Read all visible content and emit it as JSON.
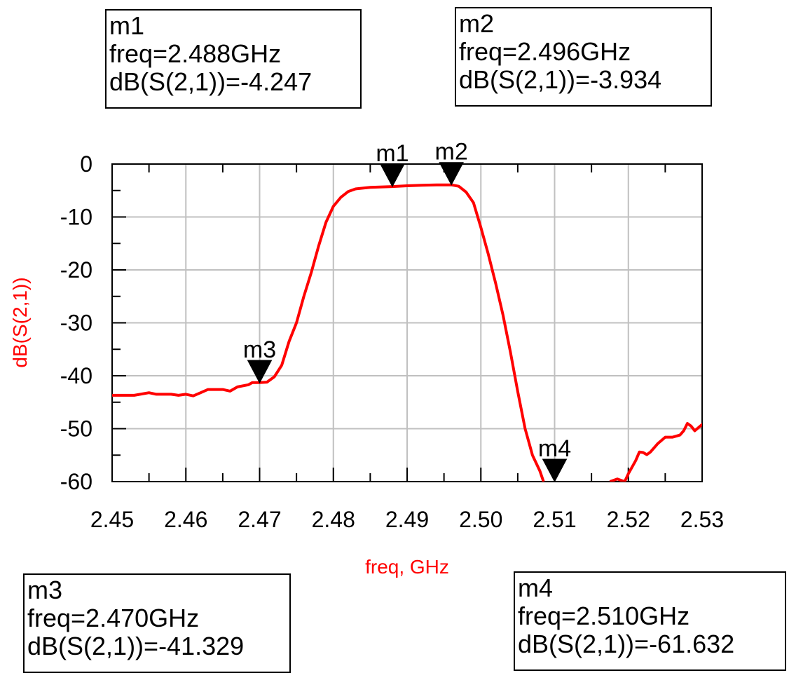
{
  "colors": {
    "trace": "#ff0000",
    "grid": "#c0c0c0",
    "axis": "#000000",
    "axis_title": "#ff0000"
  },
  "chart_data": {
    "type": "line",
    "xlabel": "freq, GHz",
    "ylabel": "dB(S(2,1))",
    "xlim": [
      2.45,
      2.53
    ],
    "ylim": [
      -60,
      0
    ],
    "grid": true,
    "x_ticks": [
      "2.45",
      "2.46",
      "2.47",
      "2.48",
      "2.49",
      "2.50",
      "2.51",
      "2.52",
      "2.53"
    ],
    "y_ticks": [
      "0",
      "-10",
      "-20",
      "-30",
      "-40",
      "-50",
      "-60"
    ],
    "series": [
      {
        "segments": [
          [
            [
              2.45,
              -43.7
            ],
            [
              2.453,
              -43.7
            ],
            [
              2.455,
              -43.2
            ],
            [
              2.456,
              -43.5
            ],
            [
              2.458,
              -43.5
            ],
            [
              2.459,
              -43.7
            ],
            [
              2.46,
              -43.5
            ],
            [
              2.461,
              -43.8
            ],
            [
              2.462,
              -43.2
            ],
            [
              2.463,
              -42.6
            ],
            [
              2.465,
              -42.6
            ],
            [
              2.466,
              -42.9
            ],
            [
              2.467,
              -42.1
            ],
            [
              2.4685,
              -41.7
            ],
            [
              2.469,
              -41.3
            ],
            [
              2.47,
              -41.3
            ],
            [
              2.471,
              -41.2
            ],
            [
              2.472,
              -40.2
            ],
            [
              2.473,
              -38.0
            ],
            [
              2.474,
              -33.5
            ],
            [
              2.475,
              -30.0
            ],
            [
              2.476,
              -25.0
            ],
            [
              2.477,
              -20.5
            ],
            [
              2.478,
              -15.5
            ],
            [
              2.479,
              -11.0
            ],
            [
              2.48,
              -8.0
            ],
            [
              2.481,
              -6.3
            ],
            [
              2.482,
              -5.2
            ],
            [
              2.483,
              -4.7
            ],
            [
              2.485,
              -4.4
            ],
            [
              2.487,
              -4.3
            ],
            [
              2.488,
              -4.247
            ],
            [
              2.49,
              -4.1
            ],
            [
              2.492,
              -4.0
            ],
            [
              2.494,
              -3.95
            ],
            [
              2.496,
              -3.934
            ],
            [
              2.497,
              -4.2
            ],
            [
              2.498,
              -5.3
            ],
            [
              2.499,
              -7.3
            ],
            [
              2.5,
              -12.0
            ],
            [
              2.501,
              -17.0
            ],
            [
              2.502,
              -22.5
            ],
            [
              2.503,
              -28.5
            ],
            [
              2.504,
              -35.5
            ],
            [
              2.505,
              -43.0
            ],
            [
              2.506,
              -50.0
            ],
            [
              2.507,
              -55.0
            ],
            [
              2.508,
              -58.0
            ],
            [
              2.5085,
              -60
            ]
          ],
          [
            [
              2.5175,
              -60
            ],
            [
              2.5185,
              -59.5
            ],
            [
              2.5195,
              -60
            ],
            [
              2.52,
              -58.5
            ],
            [
              2.521,
              -56.0
            ],
            [
              2.5215,
              -54.4
            ],
            [
              2.522,
              -54.5
            ],
            [
              2.5225,
              -54.9
            ],
            [
              2.523,
              -54.4
            ],
            [
              2.524,
              -52.8
            ],
            [
              2.525,
              -51.6
            ],
            [
              2.526,
              -51.6
            ],
            [
              2.527,
              -51.2
            ],
            [
              2.5275,
              -50.4
            ],
            [
              2.528,
              -49.0
            ],
            [
              2.5285,
              -49.5
            ],
            [
              2.529,
              -50.4
            ],
            [
              2.53,
              -49.2
            ],
            [
              2.531,
              -48.9
            ],
            [
              2.532,
              -48.5
            ],
            [
              2.533,
              -48.2
            ]
          ]
        ]
      }
    ],
    "markers": [
      {
        "name": "m1",
        "freq": 2.488,
        "value": -4.247,
        "line1": "m1",
        "line2": "freq=2.488GHz",
        "line3": "dB(S(2,1))=-4.247"
      },
      {
        "name": "m2",
        "freq": 2.496,
        "value": -3.934,
        "line1": "m2",
        "line2": "freq=2.496GHz",
        "line3": "dB(S(2,1))=-3.934"
      },
      {
        "name": "m3",
        "freq": 2.47,
        "value": -41.329,
        "line1": "m3",
        "line2": "freq=2.470GHz",
        "line3": "dB(S(2,1))=-41.329"
      },
      {
        "name": "m4",
        "freq": 2.51,
        "value": -61.632,
        "line1": "m4",
        "line2": "freq=2.510GHz",
        "line3": "dB(S(2,1))=-61.632"
      }
    ]
  }
}
